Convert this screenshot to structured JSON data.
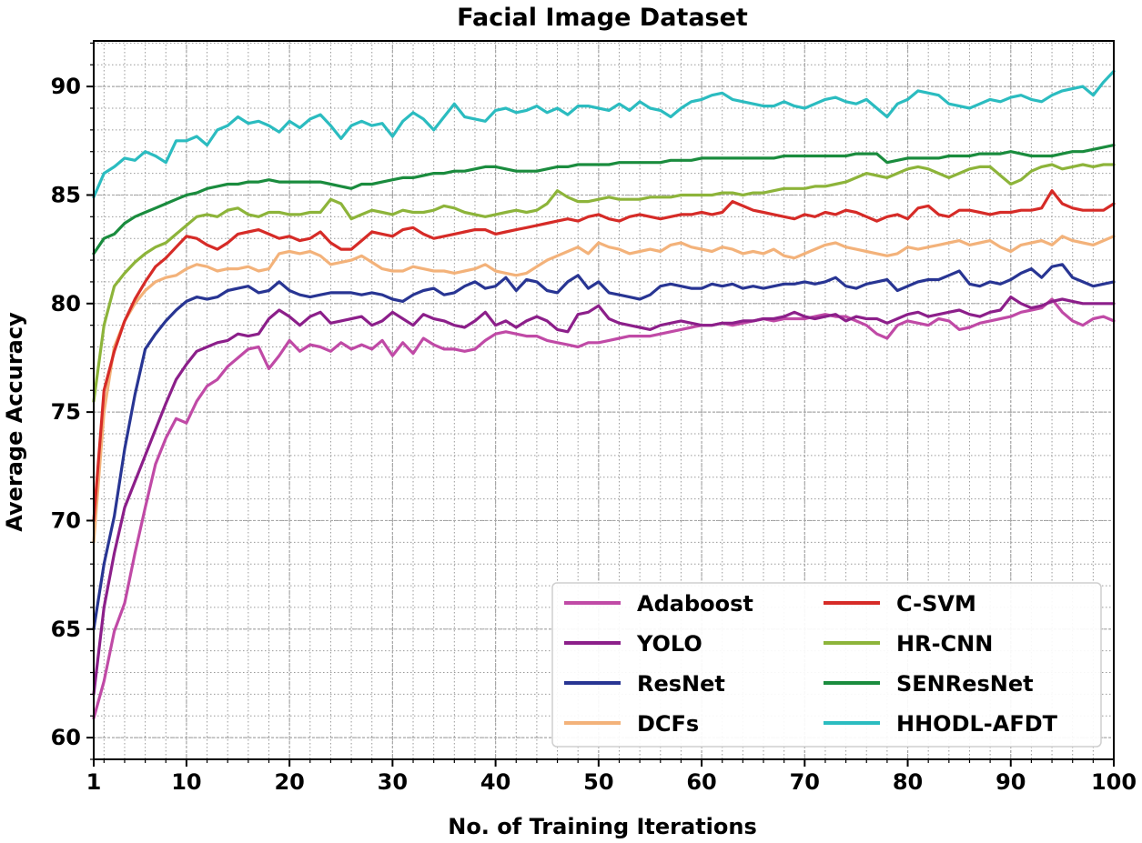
{
  "chart_data": {
    "type": "line",
    "title": "Facial Image Dataset",
    "xlabel": "No. of Training Iterations",
    "ylabel": "Average Accuracy",
    "xlim": [
      1,
      100
    ],
    "ylim": [
      59,
      92.1
    ],
    "xticks": [
      1,
      10,
      20,
      30,
      40,
      50,
      60,
      70,
      80,
      90,
      100
    ],
    "yticks": [
      60,
      65,
      70,
      75,
      80,
      85,
      90
    ],
    "grid": true,
    "legend_position": "lower-right",
    "legend_columns": 2,
    "series": [
      {
        "name": "Adaboost",
        "color": "#c04aa6",
        "values": [
          60.9,
          62.6,
          64.9,
          66.2,
          68.5,
          70.6,
          72.6,
          73.8,
          74.7,
          74.5,
          75.5,
          76.2,
          76.5,
          77.1,
          77.5,
          77.9,
          78.0,
          77.0,
          77.6,
          78.3,
          77.8,
          78.1,
          78.0,
          77.8,
          78.2,
          77.9,
          78.1,
          77.9,
          78.3,
          77.6,
          78.2,
          77.7,
          78.4,
          78.1,
          77.9,
          77.9,
          77.8,
          77.9,
          78.3,
          78.6,
          78.7,
          78.6,
          78.5,
          78.5,
          78.3,
          78.2,
          78.1,
          78.0,
          78.2,
          78.2,
          78.3,
          78.4,
          78.5,
          78.5,
          78.5,
          78.6,
          78.7,
          78.8,
          78.9,
          79.0,
          79.0,
          79.1,
          79.0,
          79.1,
          79.2,
          79.3,
          79.2,
          79.3,
          79.3,
          79.3,
          79.4,
          79.5,
          79.4,
          79.4,
          79.2,
          79.0,
          78.6,
          78.4,
          79.0,
          79.2,
          79.1,
          79.0,
          79.3,
          79.2,
          78.8,
          78.9,
          79.1,
          79.2,
          79.3,
          79.4,
          79.6,
          79.7,
          79.8,
          80.2,
          79.6,
          79.2,
          79.0,
          79.3,
          79.4,
          79.2
        ]
      },
      {
        "name": "YOLO",
        "color": "#8c1f8a",
        "values": [
          62.0,
          66.0,
          68.5,
          70.6,
          71.8,
          73.0,
          74.2,
          75.4,
          76.5,
          77.2,
          77.8,
          78.0,
          78.2,
          78.3,
          78.6,
          78.5,
          78.6,
          79.3,
          79.7,
          79.4,
          79.0,
          79.4,
          79.6,
          79.1,
          79.2,
          79.3,
          79.4,
          79.0,
          79.2,
          79.6,
          79.3,
          79.0,
          79.5,
          79.3,
          79.2,
          79.0,
          78.9,
          79.2,
          79.6,
          79.0,
          79.2,
          78.9,
          79.2,
          79.4,
          79.2,
          78.8,
          78.7,
          79.5,
          79.6,
          79.9,
          79.3,
          79.1,
          79.0,
          78.9,
          78.8,
          79.0,
          79.1,
          79.2,
          79.1,
          79.0,
          79.0,
          79.1,
          79.1,
          79.2,
          79.2,
          79.3,
          79.3,
          79.4,
          79.6,
          79.4,
          79.3,
          79.4,
          79.5,
          79.2,
          79.4,
          79.3,
          79.3,
          79.1,
          79.3,
          79.5,
          79.6,
          79.4,
          79.5,
          79.6,
          79.7,
          79.5,
          79.4,
          79.6,
          79.7,
          80.3,
          80.0,
          79.8,
          79.9,
          80.1,
          80.2,
          80.1,
          80.0,
          80.0,
          80.0,
          80.0
        ]
      },
      {
        "name": "ResNet",
        "color": "#283593",
        "values": [
          65.0,
          68.0,
          70.2,
          73.3,
          75.8,
          77.9,
          78.6,
          79.2,
          79.7,
          80.1,
          80.3,
          80.2,
          80.3,
          80.6,
          80.7,
          80.8,
          80.5,
          80.6,
          81.0,
          80.6,
          80.4,
          80.3,
          80.4,
          80.5,
          80.5,
          80.5,
          80.4,
          80.5,
          80.4,
          80.2,
          80.1,
          80.4,
          80.6,
          80.7,
          80.4,
          80.5,
          80.8,
          81.0,
          80.7,
          80.8,
          81.2,
          80.6,
          81.1,
          81.0,
          80.6,
          80.5,
          81.0,
          81.3,
          80.7,
          81.0,
          80.5,
          80.4,
          80.3,
          80.2,
          80.4,
          80.8,
          80.9,
          80.8,
          80.7,
          80.7,
          80.9,
          80.8,
          80.9,
          80.7,
          80.8,
          80.7,
          80.8,
          80.9,
          80.9,
          81.0,
          80.9,
          81.0,
          81.2,
          80.8,
          80.7,
          80.9,
          81.0,
          81.1,
          80.6,
          80.8,
          81.0,
          81.1,
          81.1,
          81.3,
          81.5,
          80.9,
          80.8,
          81.0,
          80.9,
          81.1,
          81.4,
          81.6,
          81.2,
          81.7,
          81.8,
          81.2,
          81.0,
          80.8,
          80.9,
          81.0
        ]
      },
      {
        "name": "DCFs",
        "color": "#f3b27a",
        "values": [
          69.0,
          75.0,
          78.0,
          79.2,
          80.0,
          80.6,
          81.0,
          81.2,
          81.3,
          81.6,
          81.8,
          81.7,
          81.5,
          81.6,
          81.6,
          81.7,
          81.5,
          81.6,
          82.3,
          82.4,
          82.3,
          82.4,
          82.2,
          81.8,
          81.9,
          82.0,
          82.2,
          81.9,
          81.6,
          81.5,
          81.5,
          81.7,
          81.6,
          81.5,
          81.5,
          81.4,
          81.5,
          81.6,
          81.8,
          81.5,
          81.4,
          81.3,
          81.4,
          81.7,
          82.0,
          82.2,
          82.4,
          82.6,
          82.3,
          82.8,
          82.6,
          82.5,
          82.3,
          82.4,
          82.5,
          82.4,
          82.7,
          82.8,
          82.6,
          82.5,
          82.4,
          82.6,
          82.5,
          82.3,
          82.4,
          82.3,
          82.5,
          82.2,
          82.1,
          82.3,
          82.5,
          82.7,
          82.8,
          82.6,
          82.5,
          82.4,
          82.3,
          82.2,
          82.3,
          82.6,
          82.5,
          82.6,
          82.7,
          82.8,
          82.9,
          82.7,
          82.8,
          82.9,
          82.6,
          82.4,
          82.7,
          82.8,
          82.9,
          82.7,
          83.1,
          82.9,
          82.8,
          82.7,
          82.9,
          83.1
        ]
      },
      {
        "name": "C-SVM",
        "color": "#d62b27",
        "values": [
          70.0,
          76.0,
          77.8,
          79.2,
          80.2,
          81.0,
          81.7,
          82.1,
          82.6,
          83.1,
          83.0,
          82.7,
          82.5,
          82.8,
          83.2,
          83.3,
          83.4,
          83.2,
          83.0,
          83.1,
          82.9,
          83.0,
          83.3,
          82.8,
          82.5,
          82.5,
          82.9,
          83.3,
          83.2,
          83.1,
          83.4,
          83.5,
          83.2,
          83.0,
          83.1,
          83.2,
          83.3,
          83.4,
          83.4,
          83.2,
          83.3,
          83.4,
          83.5,
          83.6,
          83.7,
          83.8,
          83.9,
          83.8,
          84.0,
          84.1,
          83.9,
          83.8,
          84.0,
          84.1,
          84.0,
          83.9,
          84.0,
          84.1,
          84.1,
          84.2,
          84.1,
          84.2,
          84.7,
          84.5,
          84.3,
          84.2,
          84.1,
          84.0,
          83.9,
          84.1,
          84.0,
          84.2,
          84.1,
          84.3,
          84.2,
          84.0,
          83.8,
          84.0,
          84.1,
          83.9,
          84.4,
          84.5,
          84.1,
          84.0,
          84.3,
          84.3,
          84.2,
          84.1,
          84.2,
          84.2,
          84.3,
          84.3,
          84.4,
          85.2,
          84.6,
          84.4,
          84.3,
          84.3,
          84.3,
          84.6
        ]
      },
      {
        "name": "HR-CNN",
        "color": "#8db43a",
        "values": [
          75.5,
          79.0,
          80.8,
          81.4,
          81.9,
          82.3,
          82.6,
          82.8,
          83.2,
          83.6,
          84.0,
          84.1,
          84.0,
          84.3,
          84.4,
          84.1,
          84.0,
          84.2,
          84.2,
          84.1,
          84.1,
          84.2,
          84.2,
          84.8,
          84.6,
          83.9,
          84.1,
          84.3,
          84.2,
          84.1,
          84.3,
          84.2,
          84.2,
          84.3,
          84.5,
          84.4,
          84.2,
          84.1,
          84.0,
          84.1,
          84.2,
          84.3,
          84.2,
          84.3,
          84.6,
          85.2,
          84.9,
          84.7,
          84.7,
          84.8,
          84.9,
          84.8,
          84.8,
          84.8,
          84.9,
          84.9,
          84.9,
          85.0,
          85.0,
          85.0,
          85.0,
          85.1,
          85.1,
          85.0,
          85.1,
          85.1,
          85.2,
          85.3,
          85.3,
          85.3,
          85.4,
          85.4,
          85.5,
          85.6,
          85.8,
          86.0,
          85.9,
          85.8,
          86.0,
          86.2,
          86.3,
          86.2,
          86.0,
          85.8,
          86.0,
          86.2,
          86.3,
          86.3,
          85.9,
          85.5,
          85.7,
          86.1,
          86.3,
          86.4,
          86.2,
          86.3,
          86.4,
          86.3,
          86.4,
          86.4
        ]
      },
      {
        "name": "SENResNet",
        "color": "#1a8c3e",
        "values": [
          82.3,
          83.0,
          83.2,
          83.7,
          84.0,
          84.2,
          84.4,
          84.6,
          84.8,
          85.0,
          85.1,
          85.3,
          85.4,
          85.5,
          85.5,
          85.6,
          85.6,
          85.7,
          85.6,
          85.6,
          85.6,
          85.6,
          85.6,
          85.5,
          85.4,
          85.3,
          85.5,
          85.5,
          85.6,
          85.7,
          85.8,
          85.8,
          85.9,
          86.0,
          86.0,
          86.1,
          86.1,
          86.2,
          86.3,
          86.3,
          86.2,
          86.1,
          86.1,
          86.1,
          86.2,
          86.3,
          86.3,
          86.4,
          86.4,
          86.4,
          86.4,
          86.5,
          86.5,
          86.5,
          86.5,
          86.5,
          86.6,
          86.6,
          86.6,
          86.7,
          86.7,
          86.7,
          86.7,
          86.7,
          86.7,
          86.7,
          86.7,
          86.8,
          86.8,
          86.8,
          86.8,
          86.8,
          86.8,
          86.8,
          86.9,
          86.9,
          86.9,
          86.5,
          86.6,
          86.7,
          86.7,
          86.7,
          86.7,
          86.8,
          86.8,
          86.8,
          86.9,
          86.9,
          86.9,
          87.0,
          86.9,
          86.8,
          86.8,
          86.8,
          86.9,
          87.0,
          87.0,
          87.1,
          87.2,
          87.3
        ]
      },
      {
        "name": "HHODL-AFDT",
        "color": "#2bbcc0",
        "values": [
          84.9,
          86.0,
          86.3,
          86.7,
          86.6,
          87.0,
          86.8,
          86.5,
          87.5,
          87.5,
          87.7,
          87.3,
          88.0,
          88.2,
          88.6,
          88.3,
          88.4,
          88.2,
          87.9,
          88.4,
          88.1,
          88.5,
          88.7,
          88.2,
          87.6,
          88.2,
          88.4,
          88.2,
          88.3,
          87.7,
          88.4,
          88.8,
          88.5,
          88.0,
          88.6,
          89.2,
          88.6,
          88.5,
          88.4,
          88.9,
          89.0,
          88.8,
          88.9,
          89.1,
          88.8,
          89.0,
          88.7,
          89.1,
          89.1,
          89.0,
          88.9,
          89.2,
          88.9,
          89.3,
          89.0,
          88.9,
          88.6,
          89.0,
          89.3,
          89.4,
          89.6,
          89.7,
          89.4,
          89.3,
          89.2,
          89.1,
          89.1,
          89.3,
          89.1,
          89.0,
          89.2,
          89.4,
          89.5,
          89.3,
          89.2,
          89.4,
          89.0,
          88.6,
          89.2,
          89.4,
          89.8,
          89.7,
          89.6,
          89.2,
          89.1,
          89.0,
          89.2,
          89.4,
          89.3,
          89.5,
          89.6,
          89.4,
          89.3,
          89.6,
          89.8,
          89.9,
          90.0,
          89.6,
          90.2,
          90.7
        ]
      }
    ]
  }
}
